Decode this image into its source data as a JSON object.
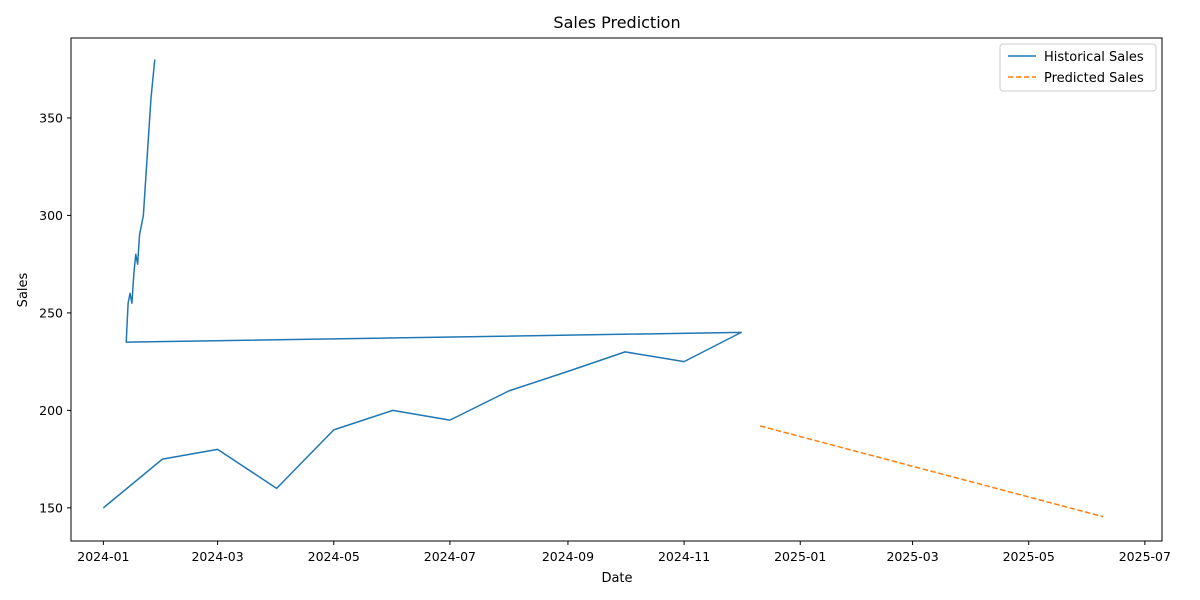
{
  "chart_data": {
    "type": "line",
    "title": "Sales Prediction",
    "xlabel": "Date",
    "ylabel": "Sales",
    "xlim": [
      "2023-12-15",
      "2025-07-10"
    ],
    "ylim": [
      133,
      391
    ],
    "x_ticks": [
      "2024-01",
      "2024-03",
      "2024-05",
      "2024-07",
      "2024-09",
      "2024-11",
      "2025-01",
      "2025-03",
      "2025-05",
      "2025-07"
    ],
    "y_ticks": [
      150,
      200,
      250,
      300,
      350
    ],
    "grid": false,
    "legend_position": "top-right",
    "series": [
      {
        "name": "Historical Sales",
        "color": "#1f77b4",
        "style": "solid",
        "points": [
          [
            "2024-01-01",
            150
          ],
          [
            "2024-02-01",
            175
          ],
          [
            "2024-03-01",
            180
          ],
          [
            "2024-04-01",
            160
          ],
          [
            "2024-05-01",
            190
          ],
          [
            "2024-06-01",
            200
          ],
          [
            "2024-07-01",
            195
          ],
          [
            "2024-08-01",
            210
          ],
          [
            "2024-09-01",
            220
          ],
          [
            "2024-10-01",
            230
          ],
          [
            "2024-11-01",
            225
          ],
          [
            "2024-12-01",
            240
          ],
          [
            "2024-01-13",
            235
          ],
          [
            "2024-01-14",
            255
          ],
          [
            "2024-01-15",
            260
          ],
          [
            "2024-01-16",
            255
          ],
          [
            "2024-01-17",
            270
          ],
          [
            "2024-01-18",
            280
          ],
          [
            "2024-01-19",
            275
          ],
          [
            "2024-01-20",
            290
          ],
          [
            "2024-01-21",
            295
          ],
          [
            "2024-01-22",
            300
          ],
          [
            "2024-01-23",
            315
          ],
          [
            "2024-01-24",
            330
          ],
          [
            "2024-01-25",
            345
          ],
          [
            "2024-01-26",
            360
          ],
          [
            "2024-01-27",
            370
          ],
          [
            "2024-01-28",
            380
          ]
        ]
      },
      {
        "name": "Predicted Sales",
        "color": "#ff7f0e",
        "style": "dashed",
        "points": [
          [
            "2024-12-11",
            192
          ],
          [
            "2025-06-09",
            145.5
          ]
        ]
      }
    ]
  }
}
